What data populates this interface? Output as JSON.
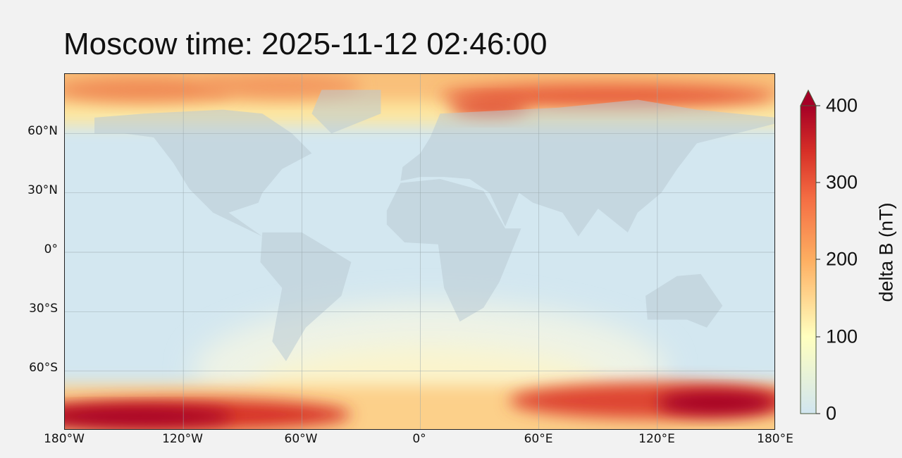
{
  "title": "Moscow time: 2025-11-12 02:46:00",
  "map": {
    "projection": "equirectangular",
    "lat_labels": [
      "60°N",
      "30°N",
      "0°",
      "30°S",
      "60°S"
    ],
    "lon_labels": [
      "180°W",
      "120°W",
      "60°W",
      "0°",
      "60°E",
      "120°E",
      "180°E"
    ],
    "gridlines": true
  },
  "colorbar": {
    "label": "delta B (nT)",
    "ticks": [
      "0",
      "100",
      "200",
      "300",
      "400"
    ],
    "range": [
      0,
      400
    ],
    "extend": "max",
    "colormap": [
      "#d1e5f0",
      "#ffffbf",
      "#fdae61",
      "#f46d43",
      "#d73027",
      "#a50026"
    ]
  }
}
